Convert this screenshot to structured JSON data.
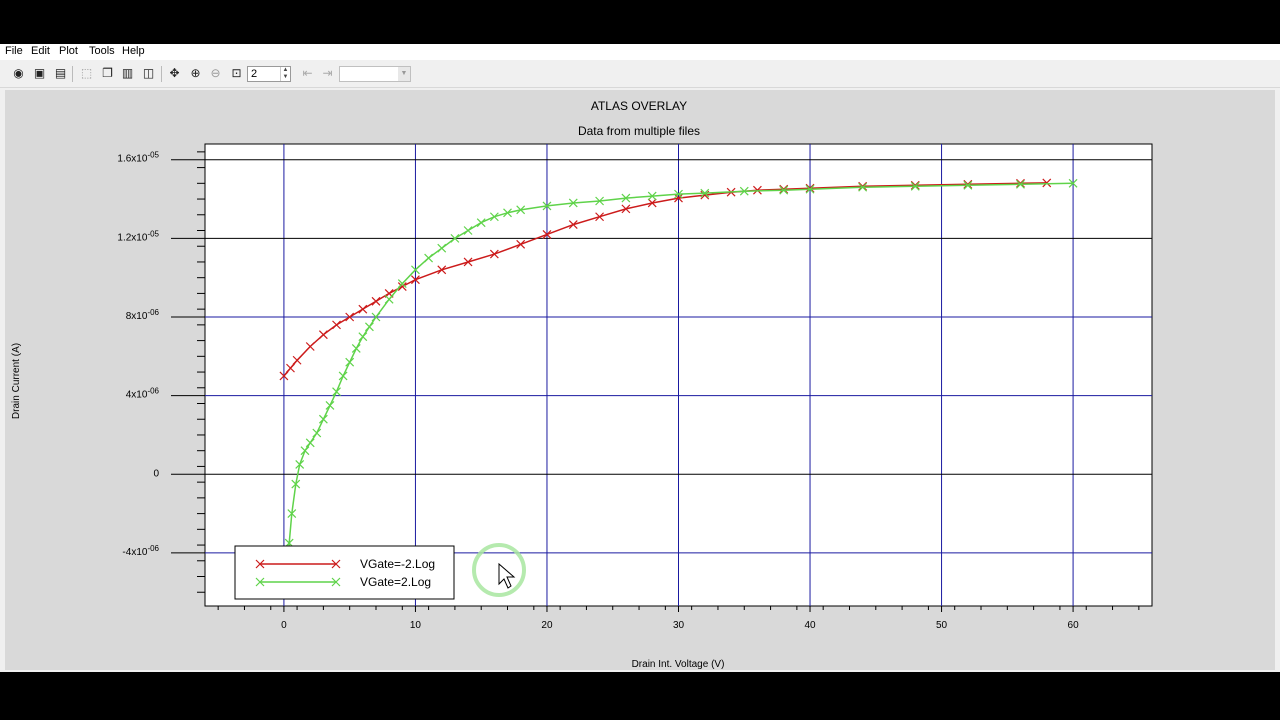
{
  "menu": {
    "items": [
      "File",
      "Edit",
      "Plot",
      "Tools",
      "Help"
    ]
  },
  "toolbar": {
    "icons": [
      "open-icon",
      "save-icon",
      "print-icon",
      "select-icon",
      "copy-icon",
      "delete-icon",
      "tile-icon",
      "pan-icon",
      "zoom-in-icon",
      "zoom-out-icon",
      "zoom-box-icon"
    ],
    "zoom_value": "2",
    "combo_value": ""
  },
  "chart_data": {
    "type": "line",
    "title": "ATLAS OVERLAY",
    "subtitle": "Data from multiple files",
    "xlabel": "Drain Int. Voltage (V)",
    "ylabel": "Drain Current (A)",
    "xlim": [
      -6,
      66
    ],
    "ylim": [
      -6.7e-06,
      1.68e-05
    ],
    "x_ticks": [
      0,
      10,
      20,
      30,
      40,
      50,
      60
    ],
    "x_tick_labels": [
      "0",
      "10",
      "20",
      "30",
      "40",
      "50",
      "60"
    ],
    "y_ticks": [
      -4e-06,
      0,
      4e-06,
      8e-06,
      1.2e-05,
      1.6e-05
    ],
    "y_tick_labels": [
      {
        "m": "-4x10",
        "e": "-06"
      },
      {
        "m": "0",
        "e": ""
      },
      {
        "m": "4x10",
        "e": "-06"
      },
      {
        "m": "8x10",
        "e": "-06"
      },
      {
        "m": "1.2x10",
        "e": "-05"
      },
      {
        "m": "1.6x10",
        "e": "-05"
      }
    ],
    "grid": true,
    "legend_position": "bottom-left",
    "series": [
      {
        "name": "VGate=-2.Log",
        "color": "#cc1b1b",
        "marker": "x",
        "points": [
          [
            0,
            5e-06
          ],
          [
            0.5,
            5.4e-06
          ],
          [
            1,
            5.8e-06
          ],
          [
            2,
            6.5e-06
          ],
          [
            3,
            7.1e-06
          ],
          [
            4,
            7.6e-06
          ],
          [
            5,
            8e-06
          ],
          [
            6,
            8.4e-06
          ],
          [
            7,
            8.8e-06
          ],
          [
            8,
            9.2e-06
          ],
          [
            9,
            9.55e-06
          ],
          [
            10,
            9.9e-06
          ],
          [
            12,
            1.04e-05
          ],
          [
            14,
            1.08e-05
          ],
          [
            16,
            1.12e-05
          ],
          [
            18,
            1.17e-05
          ],
          [
            20,
            1.22e-05
          ],
          [
            22,
            1.27e-05
          ],
          [
            24,
            1.31e-05
          ],
          [
            26,
            1.35e-05
          ],
          [
            28,
            1.38e-05
          ],
          [
            30,
            1.405e-05
          ],
          [
            32,
            1.42e-05
          ],
          [
            34,
            1.435e-05
          ],
          [
            36,
            1.445e-05
          ],
          [
            38,
            1.45e-05
          ],
          [
            40,
            1.455e-05
          ],
          [
            44,
            1.465e-05
          ],
          [
            48,
            1.47e-05
          ],
          [
            52,
            1.475e-05
          ],
          [
            56,
            1.48e-05
          ],
          [
            58,
            1.482e-05
          ]
        ]
      },
      {
        "name": "VGate=2.Log",
        "color": "#5fd34a",
        "marker": "x",
        "points": [
          [
            0.2,
            -6e-06
          ],
          [
            0.4,
            -3.5e-06
          ],
          [
            0.6,
            -2e-06
          ],
          [
            0.9,
            -5e-07
          ],
          [
            1.2,
            5e-07
          ],
          [
            1.6,
            1.2e-06
          ],
          [
            2,
            1.6e-06
          ],
          [
            2.5,
            2.1e-06
          ],
          [
            3,
            2.8e-06
          ],
          [
            3.5,
            3.5e-06
          ],
          [
            4,
            4.2e-06
          ],
          [
            4.5,
            5e-06
          ],
          [
            5,
            5.7e-06
          ],
          [
            5.5,
            6.4e-06
          ],
          [
            6,
            7e-06
          ],
          [
            6.5,
            7.5e-06
          ],
          [
            7,
            8e-06
          ],
          [
            8,
            8.9e-06
          ],
          [
            9,
            9.7e-06
          ],
          [
            10,
            1.04e-05
          ],
          [
            11,
            1.1e-05
          ],
          [
            12,
            1.15e-05
          ],
          [
            13,
            1.2e-05
          ],
          [
            14,
            1.24e-05
          ],
          [
            15,
            1.28e-05
          ],
          [
            16,
            1.31e-05
          ],
          [
            17,
            1.33e-05
          ],
          [
            18,
            1.345e-05
          ],
          [
            20,
            1.365e-05
          ],
          [
            22,
            1.38e-05
          ],
          [
            24,
            1.39e-05
          ],
          [
            26,
            1.405e-05
          ],
          [
            28,
            1.415e-05
          ],
          [
            30,
            1.425e-05
          ],
          [
            32,
            1.43e-05
          ],
          [
            35,
            1.44e-05
          ],
          [
            38,
            1.445e-05
          ],
          [
            40,
            1.45e-05
          ],
          [
            44,
            1.46e-05
          ],
          [
            48,
            1.465e-05
          ],
          [
            52,
            1.47e-05
          ],
          [
            56,
            1.475e-05
          ],
          [
            60,
            1.48e-05
          ]
        ]
      }
    ]
  }
}
